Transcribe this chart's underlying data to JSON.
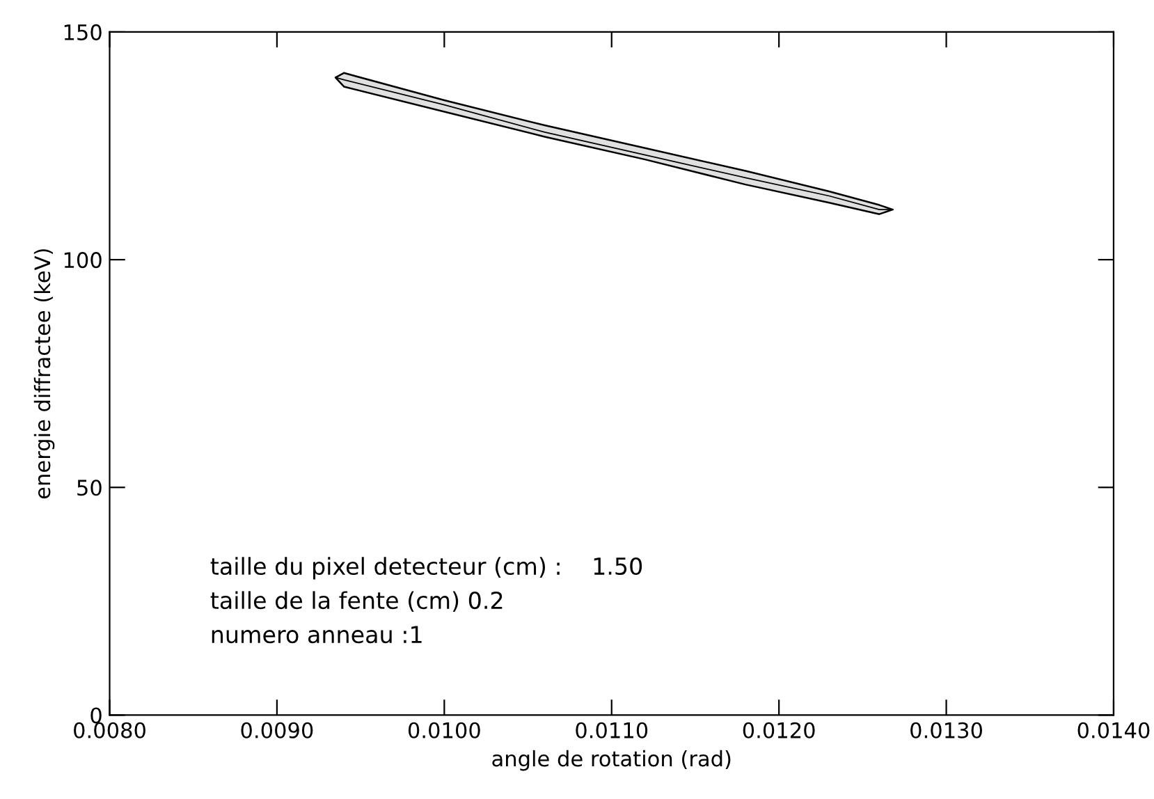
{
  "chart_data": {
    "type": "line",
    "xlabel": "angle de rotation (rad)",
    "ylabel": "energie diffractee (keV)",
    "series": [
      {
        "color": "#000000",
        "x": [
          0.00935,
          0.0094,
          0.01,
          0.0106,
          0.0112,
          0.0118,
          0.0123,
          0.0126,
          0.01268
        ],
        "values": [
          140,
          139.5,
          134,
          128,
          123,
          118,
          114,
          111,
          111
        ],
        "lower": [
          140,
          138,
          132.5,
          127,
          122,
          116.5,
          112.5,
          110,
          111
        ],
        "upper": [
          140,
          141,
          135,
          129.5,
          124.5,
          119.5,
          115,
          112,
          111
        ]
      }
    ],
    "xlim": [
      0.008,
      0.014
    ],
    "ylim": [
      0,
      150
    ],
    "xticks": [
      {
        "value": 0.008,
        "label": "0.0080"
      },
      {
        "value": 0.009,
        "label": "0.0090"
      },
      {
        "value": 0.01,
        "label": "0.0100"
      },
      {
        "value": 0.011,
        "label": "0.0110"
      },
      {
        "value": 0.012,
        "label": "0.0120"
      },
      {
        "value": 0.013,
        "label": "0.0130"
      },
      {
        "value": 0.014,
        "label": "0.0140"
      }
    ],
    "yticks": [
      0,
      50,
      100,
      150
    ],
    "annotations": [
      "taille du pixel detecteur (cm) :    1.50",
      "taille de la fente (cm) 0.2",
      "numero anneau :1"
    ]
  }
}
